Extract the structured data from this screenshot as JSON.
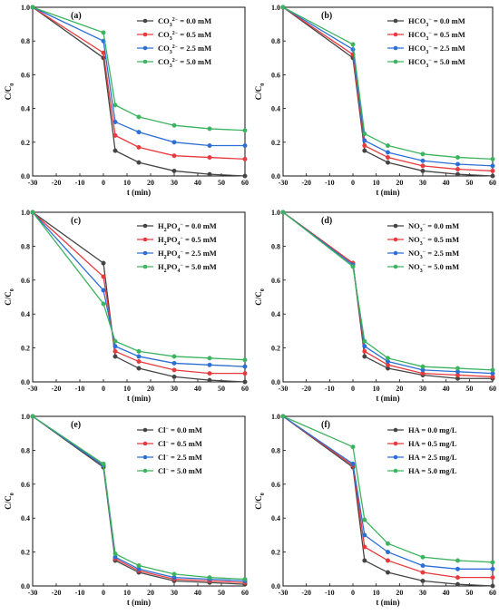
{
  "chart_data": [
    {
      "type": "line",
      "panel_label": "(a)",
      "xlabel": "t (min)",
      "ylabel": "C/C",
      "ylabel_sub": "0",
      "xlim": [
        -30,
        60
      ],
      "ylim": [
        0,
        1.0
      ],
      "xticks": [
        -30,
        -20,
        -10,
        0,
        10,
        20,
        30,
        40,
        50,
        60
      ],
      "yticks": [
        0.0,
        0.2,
        0.4,
        0.6,
        0.8,
        1.0
      ],
      "legend_position": "top-right",
      "x": [
        -30,
        0,
        5,
        15,
        30,
        45,
        60
      ],
      "series": [
        {
          "name": "CO",
          "sub": "3",
          "sup": "2−",
          "value": " = 0.0 mM",
          "color": "#444444",
          "values": [
            1.0,
            0.7,
            0.15,
            0.08,
            0.03,
            0.01,
            0.0
          ]
        },
        {
          "name": "CO",
          "sub": "3",
          "sup": "2−",
          "value": " = 0.5 mM",
          "color": "#e8393c",
          "values": [
            1.0,
            0.73,
            0.24,
            0.17,
            0.12,
            0.11,
            0.1
          ]
        },
        {
          "name": "CO",
          "sub": "3",
          "sup": "2−",
          "value": " = 2.5 mM",
          "color": "#2b6fd6",
          "values": [
            1.0,
            0.8,
            0.32,
            0.26,
            0.2,
            0.18,
            0.18
          ]
        },
        {
          "name": "CO",
          "sub": "3",
          "sup": "2−",
          "value": " = 5.0 mM",
          "color": "#3cb35f",
          "values": [
            1.0,
            0.85,
            0.42,
            0.35,
            0.3,
            0.28,
            0.27
          ]
        }
      ]
    },
    {
      "type": "line",
      "panel_label": "(b)",
      "xlabel": "t (min)",
      "ylabel": "C/C",
      "ylabel_sub": "0",
      "xlim": [
        -30,
        60
      ],
      "ylim": [
        0,
        1.0
      ],
      "xticks": [
        -30,
        -20,
        -10,
        0,
        10,
        20,
        30,
        40,
        50,
        60
      ],
      "yticks": [
        0.0,
        0.2,
        0.4,
        0.6,
        0.8,
        1.0
      ],
      "legend_position": "top-right",
      "x": [
        -30,
        0,
        5,
        15,
        30,
        45,
        60
      ],
      "series": [
        {
          "name": "HCO",
          "sub": "3",
          "sup": "−",
          "value": " = 0.0 mM",
          "color": "#444444",
          "values": [
            1.0,
            0.7,
            0.15,
            0.08,
            0.03,
            0.01,
            0.0
          ]
        },
        {
          "name": "HCO",
          "sub": "3",
          "sup": "−",
          "value": " = 0.5 mM",
          "color": "#e8393c",
          "values": [
            1.0,
            0.72,
            0.18,
            0.11,
            0.06,
            0.04,
            0.03
          ]
        },
        {
          "name": "HCO",
          "sub": "3",
          "sup": "−",
          "value": " = 2.5 mM",
          "color": "#2b6fd6",
          "values": [
            1.0,
            0.75,
            0.21,
            0.14,
            0.09,
            0.07,
            0.06
          ]
        },
        {
          "name": "HCO",
          "sub": "3",
          "sup": "−",
          "value": " = 5.0 mM",
          "color": "#3cb35f",
          "values": [
            1.0,
            0.78,
            0.25,
            0.18,
            0.13,
            0.11,
            0.1
          ]
        }
      ]
    },
    {
      "type": "line",
      "panel_label": "(c)",
      "xlabel": "t (min)",
      "ylabel": "C/C",
      "ylabel_sub": "0",
      "xlim": [
        -30,
        60
      ],
      "ylim": [
        0,
        1.0
      ],
      "xticks": [
        -30,
        -20,
        -10,
        0,
        10,
        20,
        30,
        40,
        50,
        60
      ],
      "yticks": [
        0.0,
        0.2,
        0.4,
        0.6,
        0.8,
        1.0
      ],
      "legend_position": "top-right",
      "x": [
        -30,
        0,
        5,
        15,
        30,
        45,
        60
      ],
      "series": [
        {
          "name": "H",
          "sub": "2",
          "name2": "PO",
          "sub2": "4",
          "sup": "−",
          "value": " = 0.0 mM",
          "color": "#444444",
          "values": [
            1.0,
            0.7,
            0.15,
            0.08,
            0.03,
            0.01,
            0.0
          ]
        },
        {
          "name": "H",
          "sub": "2",
          "name2": "PO",
          "sub2": "4",
          "sup": "−",
          "value": " = 0.5 mM",
          "color": "#e8393c",
          "values": [
            1.0,
            0.62,
            0.18,
            0.12,
            0.07,
            0.05,
            0.05
          ]
        },
        {
          "name": "H",
          "sub": "2",
          "name2": "PO",
          "sub2": "4",
          "sup": "−",
          "value": " = 2.5 mM",
          "color": "#2b6fd6",
          "values": [
            1.0,
            0.54,
            0.21,
            0.15,
            0.11,
            0.1,
            0.09
          ]
        },
        {
          "name": "H",
          "sub": "2",
          "name2": "PO",
          "sub2": "4",
          "sup": "−",
          "value": " = 5.0 mM",
          "color": "#3cb35f",
          "values": [
            1.0,
            0.46,
            0.24,
            0.18,
            0.15,
            0.14,
            0.13
          ]
        }
      ]
    },
    {
      "type": "line",
      "panel_label": "(d)",
      "xlabel": "t (min)",
      "ylabel": "C/C",
      "ylabel_sub": "0",
      "xlim": [
        -30,
        60
      ],
      "ylim": [
        0,
        1.0
      ],
      "xticks": [
        -30,
        -20,
        -10,
        0,
        10,
        20,
        30,
        40,
        50,
        60
      ],
      "yticks": [
        0.0,
        0.2,
        0.4,
        0.6,
        0.8,
        1.0
      ],
      "legend_position": "top-right",
      "x": [
        -30,
        0,
        5,
        15,
        30,
        45,
        60
      ],
      "series": [
        {
          "name": "NO",
          "sub": "3",
          "sup": "−",
          "value": " = 0.0 mM",
          "color": "#444444",
          "values": [
            1.0,
            0.7,
            0.15,
            0.08,
            0.04,
            0.02,
            0.02
          ]
        },
        {
          "name": "NO",
          "sub": "3",
          "sup": "−",
          "value": " = 0.5 mM",
          "color": "#e8393c",
          "values": [
            1.0,
            0.7,
            0.18,
            0.1,
            0.05,
            0.04,
            0.03
          ]
        },
        {
          "name": "NO",
          "sub": "3",
          "sup": "−",
          "value": " = 2.5 mM",
          "color": "#2b6fd6",
          "values": [
            1.0,
            0.69,
            0.21,
            0.12,
            0.07,
            0.06,
            0.05
          ]
        },
        {
          "name": "NO",
          "sub": "3",
          "sup": "−",
          "value": " = 5.0 mM",
          "color": "#3cb35f",
          "values": [
            1.0,
            0.68,
            0.24,
            0.14,
            0.09,
            0.08,
            0.07
          ]
        }
      ]
    },
    {
      "type": "line",
      "panel_label": "(e)",
      "xlabel": "t (min)",
      "ylabel": "C/C",
      "ylabel_sub": "0",
      "xlim": [
        -30,
        60
      ],
      "ylim": [
        0,
        1.0
      ],
      "xticks": [
        -30,
        -20,
        -10,
        0,
        10,
        20,
        30,
        40,
        50,
        60
      ],
      "yticks": [
        0.0,
        0.2,
        0.4,
        0.6,
        0.8,
        1.0
      ],
      "legend_position": "top-right",
      "x": [
        -30,
        0,
        5,
        15,
        30,
        45,
        60
      ],
      "series": [
        {
          "name": "Cl",
          "sub": "",
          "sup": "−",
          "value": " = 0.0 mM",
          "color": "#444444",
          "values": [
            1.0,
            0.7,
            0.15,
            0.08,
            0.03,
            0.02,
            0.01
          ]
        },
        {
          "name": "Cl",
          "sub": "",
          "sup": "−",
          "value": " = 0.5 mM",
          "color": "#e8393c",
          "values": [
            1.0,
            0.71,
            0.16,
            0.09,
            0.04,
            0.03,
            0.02
          ]
        },
        {
          "name": "Cl",
          "sub": "",
          "sup": "−",
          "value": " = 2.5 mM",
          "color": "#2b6fd6",
          "values": [
            1.0,
            0.71,
            0.17,
            0.1,
            0.05,
            0.04,
            0.03
          ]
        },
        {
          "name": "Cl",
          "sub": "",
          "sup": "−",
          "value": " = 5.0 mM",
          "color": "#3cb35f",
          "values": [
            1.0,
            0.72,
            0.19,
            0.12,
            0.07,
            0.05,
            0.04
          ]
        }
      ]
    },
    {
      "type": "line",
      "panel_label": "(f)",
      "xlabel": "t (min)",
      "ylabel": "C/C",
      "ylabel_sub": "0",
      "xlim": [
        -30,
        60
      ],
      "ylim": [
        0,
        1.0
      ],
      "xticks": [
        -30,
        -20,
        -10,
        0,
        10,
        20,
        30,
        40,
        50,
        60
      ],
      "yticks": [
        0.0,
        0.2,
        0.4,
        0.6,
        0.8,
        1.0
      ],
      "legend_position": "top-right",
      "x": [
        -30,
        0,
        5,
        15,
        30,
        45,
        60
      ],
      "series": [
        {
          "name": "HA",
          "sub": "",
          "sup": "",
          "value": " = 0.0 mg/L",
          "color": "#444444",
          "values": [
            1.0,
            0.7,
            0.15,
            0.08,
            0.03,
            0.01,
            0.0
          ]
        },
        {
          "name": "HA",
          "sub": "",
          "sup": "",
          "value": " = 0.5 mg/L",
          "color": "#e8393c",
          "values": [
            1.0,
            0.71,
            0.23,
            0.15,
            0.08,
            0.05,
            0.05
          ]
        },
        {
          "name": "HA",
          "sub": "",
          "sup": "",
          "value": " = 2.5 mg/L",
          "color": "#2b6fd6",
          "values": [
            1.0,
            0.72,
            0.3,
            0.2,
            0.12,
            0.1,
            0.1
          ]
        },
        {
          "name": "HA",
          "sub": "",
          "sup": "",
          "value": " = 5.0 mg/L",
          "color": "#3cb35f",
          "values": [
            1.0,
            0.82,
            0.39,
            0.25,
            0.17,
            0.15,
            0.14
          ]
        }
      ]
    }
  ]
}
